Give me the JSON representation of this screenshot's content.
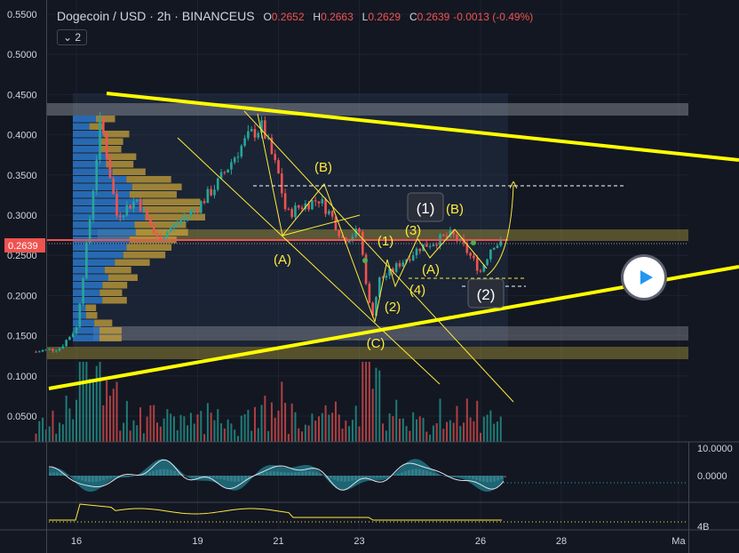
{
  "header": {
    "symbol": "Dogecoin / USD",
    "interval": "2h",
    "exchange": "BINANCEUS",
    "open_label": "O",
    "open": "0.2652",
    "high_label": "H",
    "high": "0.2663",
    "low_label": "L",
    "low": "0.2629",
    "close_label": "C",
    "close": "0.2639",
    "change": "-0.0013 (-0.49%)",
    "indicators_toggle": "2"
  },
  "price_axis": {
    "ticks": [
      "0.5500",
      "0.5000",
      "0.4500",
      "0.4000",
      "0.3500",
      "0.3000",
      "0.2500",
      "0.2000",
      "0.1500",
      "0.1000",
      "0.0500"
    ],
    "current_price": "0.2639"
  },
  "oscillator_axis": {
    "ticks": [
      "10.0000",
      "0.0000"
    ]
  },
  "volume_pane_axis": {
    "ticks": [
      "4B"
    ]
  },
  "time_axis": {
    "ticks": [
      "16",
      "19",
      "21",
      "23",
      "26",
      "28",
      "Ma"
    ]
  },
  "annotations": {
    "A1": "(A)",
    "B1": "(B)",
    "C1": "(C)",
    "w1": "(1)",
    "w2": "(2)",
    "w3": "(3)",
    "w4": "(4)",
    "A2": "(A)",
    "B2": "(B)",
    "box1": "(1)",
    "box2": "(2)"
  },
  "colors": {
    "up": "#26a69a",
    "down": "#ef5350",
    "trendline": "#ffff00",
    "background": "#131722"
  },
  "chart_data": {
    "type": "candlestick",
    "price_path": [
      [
        15.0,
        0.13
      ],
      [
        15.6,
        0.135
      ],
      [
        16.0,
        0.16
      ],
      [
        16.3,
        0.28
      ],
      [
        16.6,
        0.42
      ],
      [
        17.0,
        0.3
      ],
      [
        17.5,
        0.32
      ],
      [
        18.0,
        0.27
      ],
      [
        18.5,
        0.29
      ],
      [
        19.0,
        0.31
      ],
      [
        19.5,
        0.34
      ],
      [
        20.0,
        0.38
      ],
      [
        20.3,
        0.4
      ],
      [
        20.6,
        0.41
      ],
      [
        21.0,
        0.35
      ],
      [
        21.2,
        0.3
      ],
      [
        21.5,
        0.31
      ],
      [
        22.0,
        0.32
      ],
      [
        22.3,
        0.3
      ],
      [
        22.6,
        0.27
      ],
      [
        23.0,
        0.28
      ],
      [
        23.3,
        0.17
      ],
      [
        23.5,
        0.22
      ],
      [
        23.8,
        0.23
      ],
      [
        24.0,
        0.24
      ],
      [
        24.5,
        0.26
      ],
      [
        25.0,
        0.27
      ],
      [
        25.3,
        0.275
      ],
      [
        25.6,
        0.26
      ],
      [
        26.0,
        0.23
      ],
      [
        26.3,
        0.265
      ],
      [
        26.5,
        0.2639
      ]
    ]
  }
}
